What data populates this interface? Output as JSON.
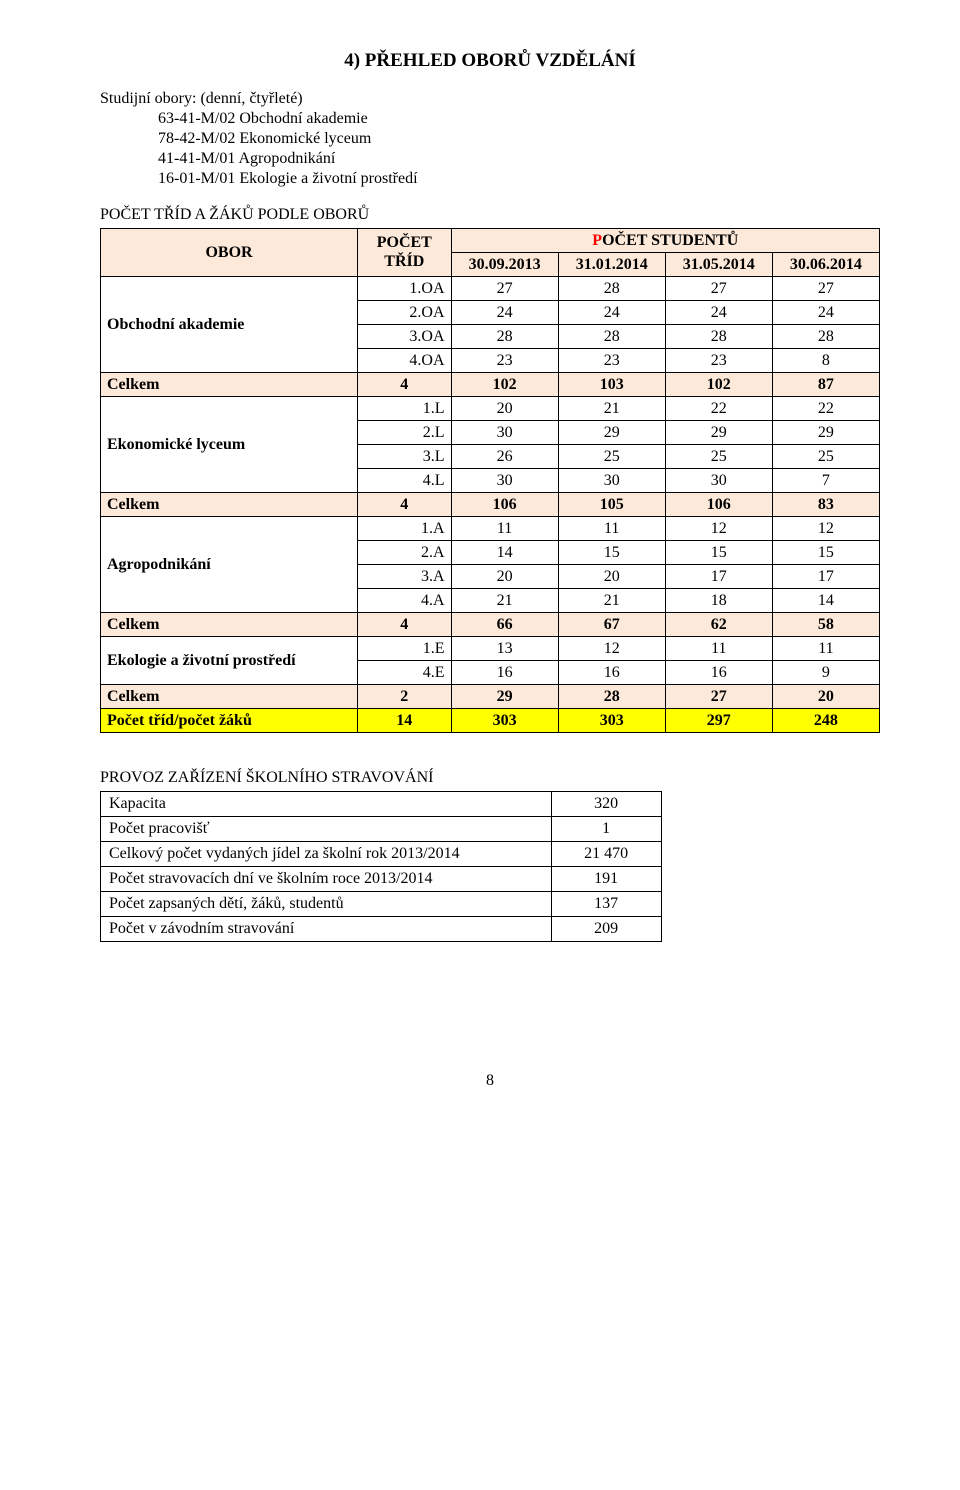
{
  "title": "4) PŘEHLED OBORŮ VZDĚLÁNÍ",
  "intro": {
    "line1": "Studijní obory: (denní, čtyřleté)",
    "line2": "63-41-M/02 Obchodní akademie",
    "line3": "78-42-M/02 Ekonomické lyceum",
    "line4": "41-41-M/01 Agropodnikání",
    "line5": "16-01-M/01 Ekologie a životní prostředí"
  },
  "subhead": "POČET TŘÍD A ŽÁKŮ PODLE OBORŮ",
  "t1": {
    "hdr_obor": "OBOR",
    "hdr_pocet_trid": "POČET\nTŘÍD",
    "hdr_pocet_stud_pre_P": "P",
    "hdr_pocet_stud_rest": "OČET STUDENTŮ",
    "col_dates": [
      "30.09.2013",
      "31.01.2014",
      "31.05.2014",
      "30.06.2014"
    ],
    "groups": [
      {
        "name": "Obchodní akademie",
        "rows": [
          [
            "1.OA",
            "27",
            "28",
            "27",
            "27"
          ],
          [
            "2.OA",
            "24",
            "24",
            "24",
            "24"
          ],
          [
            "3.OA",
            "28",
            "28",
            "28",
            "28"
          ],
          [
            "4.OA",
            "23",
            "23",
            "23",
            "8"
          ]
        ],
        "celkem": [
          "Celkem",
          "4",
          "102",
          "103",
          "102",
          "87"
        ]
      },
      {
        "name": "Ekonomické lyceum",
        "rows": [
          [
            "1.L",
            "20",
            "21",
            "22",
            "22"
          ],
          [
            "2.L",
            "30",
            "29",
            "29",
            "29"
          ],
          [
            "3.L",
            "26",
            "25",
            "25",
            "25"
          ],
          [
            "4.L",
            "30",
            "30",
            "30",
            "7"
          ]
        ],
        "celkem": [
          "Celkem",
          "4",
          "106",
          "105",
          "106",
          "83"
        ]
      },
      {
        "name": "Agropodnikání",
        "rows": [
          [
            "1.A",
            "11",
            "11",
            "12",
            "12"
          ],
          [
            "2.A",
            "14",
            "15",
            "15",
            "15"
          ],
          [
            "3.A",
            "20",
            "20",
            "17",
            "17"
          ],
          [
            "4.A",
            "21",
            "21",
            "18",
            "14"
          ]
        ],
        "celkem": [
          "Celkem",
          "4",
          "66",
          "67",
          "62",
          "58"
        ]
      },
      {
        "name": "Ekologie a životní prostředí",
        "rows": [
          [
            "1.E",
            "13",
            "12",
            "11",
            "11"
          ],
          [
            "4.E",
            "16",
            "16",
            "16",
            "9"
          ]
        ],
        "celkem": [
          "Celkem",
          "2",
          "29",
          "28",
          "27",
          "20"
        ]
      }
    ],
    "final": [
      "Počet tříd/počet žáků",
      "14",
      "303",
      "303",
      "297",
      "248"
    ]
  },
  "subhead2": "PROVOZ ZAŘÍZENÍ ŠKOLNÍHO STRAVOVÁNÍ",
  "t2": {
    "rows": [
      [
        "Kapacita",
        "320"
      ],
      [
        "Počet pracovišť",
        "1"
      ],
      [
        "Celkový počet vydaných jídel za školní rok 2013/2014",
        "21 470"
      ],
      [
        "Počet stravovacích dní ve školním roce 2013/2014",
        "191"
      ],
      [
        "Počet zapsaných dětí, žáků, studentů",
        "137"
      ],
      [
        "Počet v závodním stravování",
        "209"
      ]
    ]
  },
  "colors": {
    "highlight_peach": "#fde9d9",
    "highlight_yellow": "#ffff00",
    "text_red": "#ff0000"
  },
  "pagenum": "8"
}
